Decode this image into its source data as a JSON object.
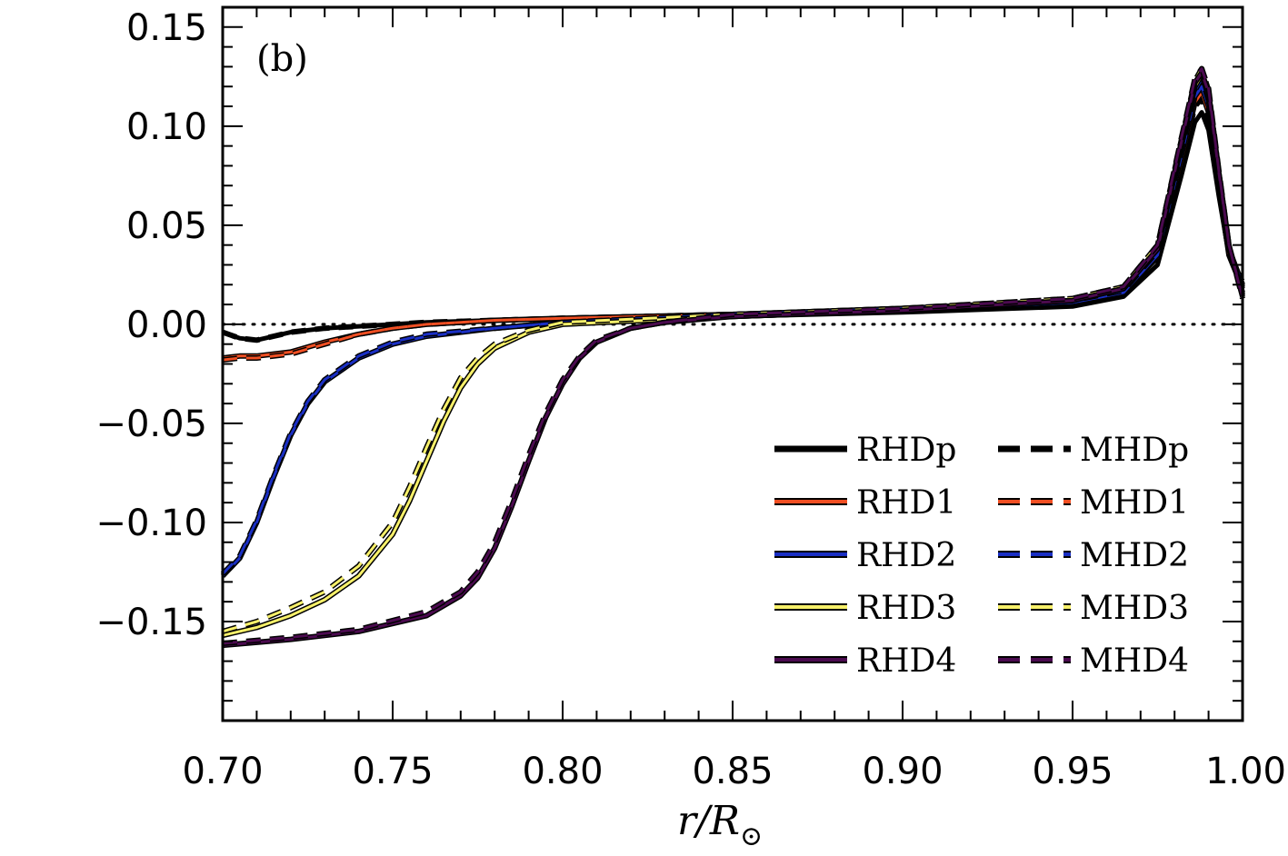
{
  "chart_data": {
    "type": "line",
    "panel_label": "(b)",
    "xlabel": "r/R",
    "xlabel_subscript": "⊙",
    "ylabel": "",
    "xlim": [
      0.7,
      1.0
    ],
    "ylim": [
      -0.2,
      0.16
    ],
    "xticks": [
      0.7,
      0.75,
      0.8,
      0.85,
      0.9,
      0.95,
      1.0
    ],
    "xtick_labels": [
      "0.70",
      "0.75",
      "0.80",
      "0.85",
      "0.90",
      "0.95",
      "1.00"
    ],
    "yticks": [
      0.15,
      0.1,
      0.05,
      0.0,
      -0.05,
      -0.1,
      -0.15
    ],
    "ytick_labels": [
      "0.15",
      "0.10",
      "0.05",
      "0.00",
      "−0.05",
      "−0.10",
      "−0.15"
    ],
    "reference_line": {
      "y": 0.0,
      "style": "dotted"
    },
    "legend_position": "bottom-right",
    "series": [
      {
        "name": "RHDp",
        "color": "#000000",
        "dash": false,
        "x": [
          0.7,
          0.705,
          0.71,
          0.715,
          0.72,
          0.73,
          0.74,
          0.76,
          0.8,
          0.85,
          0.9,
          0.95,
          0.965,
          0.975,
          0.982,
          0.986,
          0.988,
          0.99,
          0.993,
          0.996,
          1.0
        ],
        "y": [
          -0.004,
          -0.007,
          -0.008,
          -0.006,
          -0.004,
          -0.002,
          -0.001,
          0.001,
          0.003,
          0.004,
          0.006,
          0.009,
          0.014,
          0.03,
          0.075,
          0.102,
          0.107,
          0.098,
          0.065,
          0.035,
          0.022
        ]
      },
      {
        "name": "MHDp",
        "color": "#000000",
        "dash": true,
        "x": [
          0.7,
          0.705,
          0.71,
          0.715,
          0.72,
          0.73,
          0.74,
          0.76,
          0.8,
          0.85,
          0.9,
          0.95,
          0.965,
          0.975,
          0.982,
          0.986,
          0.988,
          0.99,
          0.993,
          0.996,
          1.0
        ],
        "y": [
          -0.004,
          -0.007,
          -0.008,
          -0.006,
          -0.004,
          -0.002,
          -0.001,
          0.001,
          0.003,
          0.005,
          0.007,
          0.011,
          0.016,
          0.034,
          0.082,
          0.11,
          0.114,
          0.104,
          0.068,
          0.036,
          0.02
        ]
      },
      {
        "name": "RHD1",
        "color": "#f04f23",
        "dash": false,
        "x": [
          0.7,
          0.705,
          0.71,
          0.715,
          0.72,
          0.73,
          0.74,
          0.75,
          0.76,
          0.78,
          0.8,
          0.85,
          0.9,
          0.95,
          0.965,
          0.975,
          0.982,
          0.986,
          0.988,
          0.99,
          0.993,
          0.996,
          1.0
        ],
        "y": [
          -0.017,
          -0.016,
          -0.016,
          -0.015,
          -0.014,
          -0.009,
          -0.005,
          -0.002,
          0.0,
          0.002,
          0.003,
          0.005,
          0.007,
          0.011,
          0.016,
          0.034,
          0.082,
          0.112,
          0.117,
          0.107,
          0.07,
          0.035,
          0.018
        ]
      },
      {
        "name": "MHD1",
        "color": "#f04f23",
        "dash": true,
        "x": [
          0.7,
          0.705,
          0.71,
          0.715,
          0.72,
          0.73,
          0.74,
          0.75,
          0.76,
          0.78,
          0.8,
          0.85,
          0.9,
          0.95,
          0.965,
          0.975,
          0.982,
          0.986,
          0.988,
          0.99,
          0.993,
          0.996,
          1.0
        ],
        "y": [
          -0.018,
          -0.017,
          -0.017,
          -0.016,
          -0.015,
          -0.01,
          -0.005,
          -0.002,
          0.0,
          0.002,
          0.003,
          0.005,
          0.008,
          0.012,
          0.017,
          0.036,
          0.086,
          0.116,
          0.12,
          0.11,
          0.072,
          0.036,
          0.017
        ]
      },
      {
        "name": "RHD2",
        "color": "#1a2fc4",
        "dash": false,
        "x": [
          0.7,
          0.705,
          0.71,
          0.715,
          0.72,
          0.725,
          0.73,
          0.74,
          0.75,
          0.76,
          0.78,
          0.8,
          0.85,
          0.9,
          0.95,
          0.965,
          0.975,
          0.982,
          0.986,
          0.988,
          0.99,
          0.993,
          0.996,
          1.0
        ],
        "y": [
          -0.127,
          -0.118,
          -0.1,
          -0.077,
          -0.056,
          -0.04,
          -0.029,
          -0.017,
          -0.01,
          -0.006,
          -0.002,
          0.001,
          0.004,
          0.007,
          0.011,
          0.016,
          0.035,
          0.085,
          0.115,
          0.12,
          0.11,
          0.072,
          0.038,
          0.02
        ]
      },
      {
        "name": "MHD2",
        "color": "#1a2fc4",
        "dash": true,
        "x": [
          0.7,
          0.705,
          0.71,
          0.715,
          0.72,
          0.725,
          0.73,
          0.74,
          0.75,
          0.76,
          0.78,
          0.8,
          0.85,
          0.9,
          0.95,
          0.965,
          0.975,
          0.982,
          0.986,
          0.988,
          0.99,
          0.993,
          0.996,
          1.0
        ],
        "y": [
          -0.126,
          -0.117,
          -0.099,
          -0.076,
          -0.055,
          -0.039,
          -0.028,
          -0.016,
          -0.009,
          -0.005,
          -0.002,
          0.001,
          0.005,
          0.008,
          0.012,
          0.017,
          0.037,
          0.088,
          0.118,
          0.124,
          0.113,
          0.074,
          0.038,
          0.019
        ]
      },
      {
        "name": "RHD3",
        "color": "#f7f06a",
        "dash": false,
        "x": [
          0.7,
          0.71,
          0.72,
          0.73,
          0.74,
          0.75,
          0.755,
          0.76,
          0.765,
          0.77,
          0.775,
          0.78,
          0.79,
          0.8,
          0.85,
          0.9,
          0.95,
          0.965,
          0.975,
          0.982,
          0.986,
          0.988,
          0.99,
          0.993,
          0.996,
          1.0
        ],
        "y": [
          -0.157,
          -0.153,
          -0.147,
          -0.139,
          -0.127,
          -0.106,
          -0.089,
          -0.069,
          -0.049,
          -0.032,
          -0.02,
          -0.012,
          -0.004,
          0.0,
          0.004,
          0.007,
          0.012,
          0.018,
          0.038,
          0.09,
          0.12,
          0.126,
          0.115,
          0.075,
          0.038,
          0.016
        ]
      },
      {
        "name": "MHD3",
        "color": "#f7f06a",
        "dash": true,
        "x": [
          0.7,
          0.71,
          0.72,
          0.73,
          0.74,
          0.75,
          0.755,
          0.76,
          0.765,
          0.77,
          0.775,
          0.78,
          0.79,
          0.8,
          0.85,
          0.9,
          0.95,
          0.965,
          0.975,
          0.982,
          0.986,
          0.988,
          0.99,
          0.993,
          0.996,
          1.0
        ],
        "y": [
          -0.155,
          -0.15,
          -0.143,
          -0.135,
          -0.122,
          -0.1,
          -0.082,
          -0.062,
          -0.043,
          -0.027,
          -0.017,
          -0.01,
          -0.003,
          0.001,
          0.005,
          0.008,
          0.013,
          0.019,
          0.04,
          0.093,
          0.123,
          0.129,
          0.118,
          0.077,
          0.039,
          0.015
        ]
      },
      {
        "name": "RHD4",
        "color": "#4b0a4f",
        "dash": false,
        "x": [
          0.7,
          0.72,
          0.74,
          0.76,
          0.77,
          0.775,
          0.78,
          0.785,
          0.79,
          0.795,
          0.8,
          0.805,
          0.81,
          0.82,
          0.83,
          0.85,
          0.9,
          0.95,
          0.965,
          0.975,
          0.982,
          0.986,
          0.988,
          0.99,
          0.993,
          0.996,
          1.0
        ],
        "y": [
          -0.162,
          -0.159,
          -0.155,
          -0.147,
          -0.137,
          -0.128,
          -0.113,
          -0.092,
          -0.069,
          -0.047,
          -0.03,
          -0.017,
          -0.009,
          -0.002,
          0.001,
          0.004,
          0.007,
          0.012,
          0.018,
          0.038,
          0.092,
          0.122,
          0.127,
          0.117,
          0.077,
          0.04,
          0.014
        ]
      },
      {
        "name": "MHD4",
        "color": "#4b0a4f",
        "dash": true,
        "x": [
          0.7,
          0.72,
          0.74,
          0.76,
          0.77,
          0.775,
          0.78,
          0.785,
          0.79,
          0.795,
          0.8,
          0.805,
          0.81,
          0.82,
          0.83,
          0.85,
          0.9,
          0.95,
          0.965,
          0.975,
          0.982,
          0.986,
          0.988,
          0.99,
          0.993,
          0.996,
          1.0
        ],
        "y": [
          -0.161,
          -0.158,
          -0.154,
          -0.145,
          -0.135,
          -0.125,
          -0.11,
          -0.089,
          -0.066,
          -0.045,
          -0.028,
          -0.016,
          -0.008,
          -0.002,
          0.001,
          0.005,
          0.008,
          0.013,
          0.019,
          0.04,
          0.094,
          0.124,
          0.129,
          0.119,
          0.078,
          0.04,
          0.013
        ]
      }
    ]
  }
}
